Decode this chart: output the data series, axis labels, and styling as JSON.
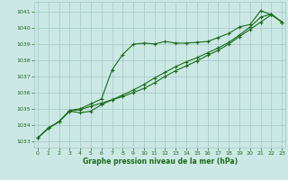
{
  "xlabel": "Graphe pression niveau de la mer (hPa)",
  "x_ticks": [
    0,
    1,
    2,
    3,
    4,
    5,
    6,
    7,
    8,
    9,
    10,
    11,
    12,
    13,
    14,
    15,
    16,
    17,
    18,
    19,
    20,
    21,
    22,
    23
  ],
  "y_ticks": [
    1033,
    1034,
    1035,
    1036,
    1037,
    1038,
    1039,
    1040,
    1041
  ],
  "ylim": [
    1032.6,
    1041.6
  ],
  "xlim": [
    -0.3,
    23.3
  ],
  "background_color": "#cce8e4",
  "grid_color": "#aacccc",
  "line_color": "#1a6b1a",
  "series1": [
    1033.2,
    1033.8,
    1034.2,
    1034.9,
    1035.0,
    1035.3,
    1035.6,
    1037.4,
    1038.35,
    1038.98,
    1039.05,
    1039.0,
    1039.15,
    1039.05,
    1039.05,
    1039.1,
    1039.15,
    1039.4,
    1039.65,
    1040.05,
    1040.2,
    1041.05,
    1040.8,
    1040.35
  ],
  "series2": [
    1033.2,
    1033.8,
    1034.2,
    1034.85,
    1034.95,
    1035.15,
    1035.35,
    1035.55,
    1035.75,
    1036.0,
    1036.25,
    1036.6,
    1037.0,
    1037.35,
    1037.65,
    1037.95,
    1038.3,
    1038.6,
    1039.0,
    1039.45,
    1039.9,
    1040.35,
    1040.8,
    1040.35
  ],
  "series3": [
    1033.2,
    1033.8,
    1034.2,
    1034.85,
    1034.75,
    1034.85,
    1035.25,
    1035.55,
    1035.85,
    1036.15,
    1036.5,
    1036.9,
    1037.25,
    1037.6,
    1037.9,
    1038.15,
    1038.45,
    1038.75,
    1039.1,
    1039.55,
    1040.05,
    1040.65,
    1040.85,
    1040.35
  ]
}
